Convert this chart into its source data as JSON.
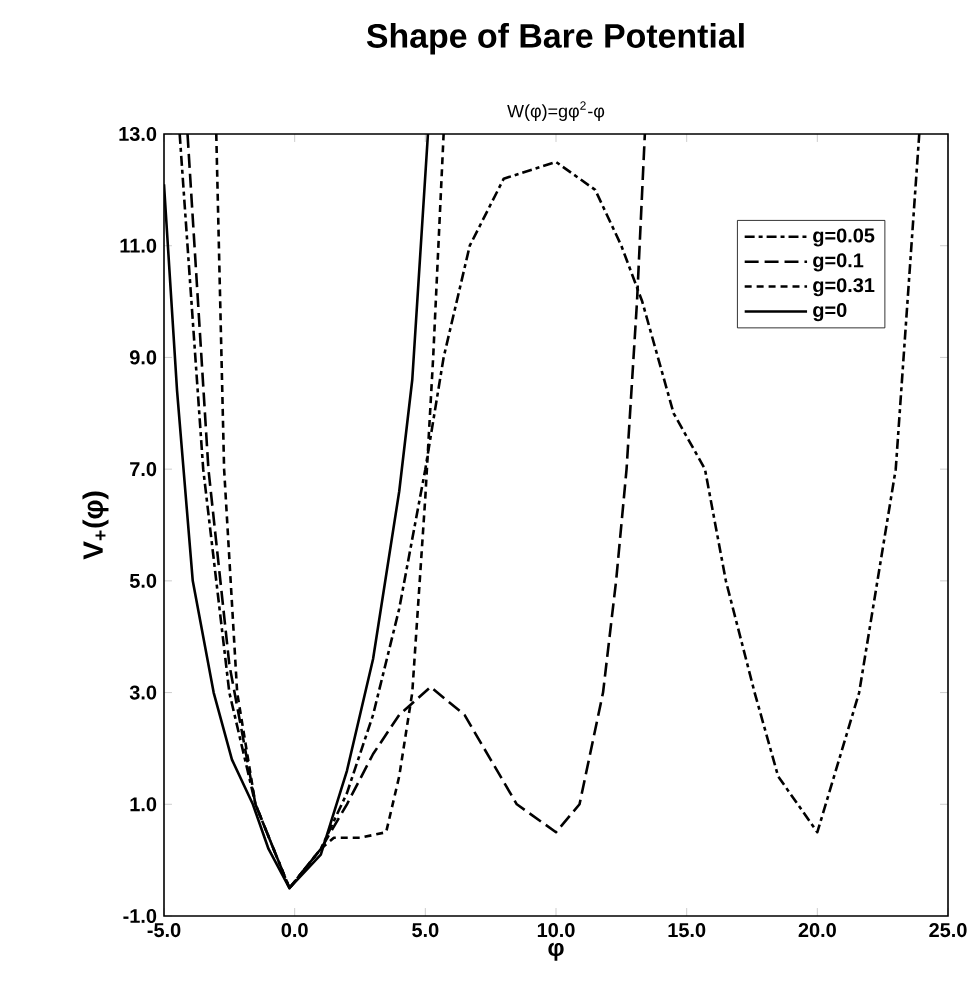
{
  "chart_data": {
    "type": "line",
    "title": "Shape of Bare Potential",
    "subtitle": "W(φ)=gφ$^{2}$-φ",
    "xlabel": "φ",
    "ylabel": "V$_{+}$(φ)",
    "xlim": [
      -5,
      25
    ],
    "ylim": [
      -1,
      13
    ],
    "xticks": [
      {
        "value": -5,
        "label": "-5.0"
      },
      {
        "value": 0,
        "label": "0.0"
      },
      {
        "value": 5,
        "label": "5.0"
      },
      {
        "value": 10,
        "label": "10.0"
      },
      {
        "value": 15,
        "label": "15.0"
      },
      {
        "value": 20,
        "label": "20.0"
      },
      {
        "value": 25,
        "label": "25.0"
      }
    ],
    "yticks": [
      {
        "value": -1,
        "label": "-1.0"
      },
      {
        "value": 1,
        "label": "1.0"
      },
      {
        "value": 3,
        "label": "3.0"
      },
      {
        "value": 5,
        "label": "5.0"
      },
      {
        "value": 7,
        "label": "7.0"
      },
      {
        "value": 9,
        "label": "9.0"
      },
      {
        "value": 11,
        "label": "11.0"
      },
      {
        "value": 13,
        "label": "13.0"
      }
    ],
    "grid": false,
    "legend": "top right",
    "marker": "none",
    "series": [
      {
        "name": "g=0.05",
        "color": "#000000",
        "line_style": "dashdot",
        "x": [
          -4.4,
          -3.5,
          -2.5,
          -1.5,
          -0.2,
          1,
          2,
          3,
          4,
          4.6,
          5,
          5.7,
          6.7,
          8,
          10,
          11.5,
          12.5,
          13.3,
          14.5,
          15.7,
          16.5,
          17.6,
          18.5,
          20,
          21.6,
          22.3,
          23,
          23.9
        ],
        "values": [
          13,
          7,
          3,
          1,
          -0.5,
          0.2,
          1.2,
          2.6,
          4.5,
          6,
          7,
          9,
          11,
          12.2,
          12.5,
          12,
          11,
          10,
          8,
          7,
          5,
          3,
          1.5,
          0.5,
          3,
          5,
          7,
          13
        ]
      },
      {
        "name": "g=0.1",
        "color": "#000000",
        "line_style": "longdash",
        "x": [
          -4.1,
          -3.3,
          -2.5,
          -1.5,
          -0.2,
          1,
          2,
          3,
          4,
          5.2,
          6.5,
          7.5,
          8.5,
          10,
          10.9,
          11.8,
          12.3,
          12.7,
          13.1,
          13.4
        ],
        "values": [
          13,
          7,
          3.5,
          1,
          -0.5,
          0.2,
          1,
          1.9,
          2.6,
          3.1,
          2.6,
          1.8,
          1,
          0.5,
          1,
          3,
          5,
          7,
          10,
          13
        ]
      },
      {
        "name": "g=0.31",
        "color": "#000000",
        "line_style": "dashed",
        "x": [
          -3,
          -2.7,
          -2.2,
          -1.5,
          -0.2,
          1,
          1.5,
          2.5,
          3.5,
          4,
          4.5,
          5,
          5.3,
          5.7
        ],
        "values": [
          13,
          7,
          3,
          1,
          -0.5,
          0.2,
          0.4,
          0.4,
          0.5,
          1.5,
          3,
          6.5,
          9,
          13
        ]
      },
      {
        "name": "g=0",
        "color": "#000000",
        "line_style": "solid",
        "x": [
          -5,
          -4.5,
          -3.9,
          -3.1,
          -2.4,
          -1.6,
          -1,
          -0.2,
          1,
          2,
          3,
          4,
          4.5,
          5.1
        ],
        "values": [
          12.1,
          8.4,
          5,
          3,
          1.8,
          1,
          0.2,
          -0.5,
          0.1,
          1.6,
          3.6,
          6.6,
          8.6,
          13
        ]
      }
    ]
  }
}
